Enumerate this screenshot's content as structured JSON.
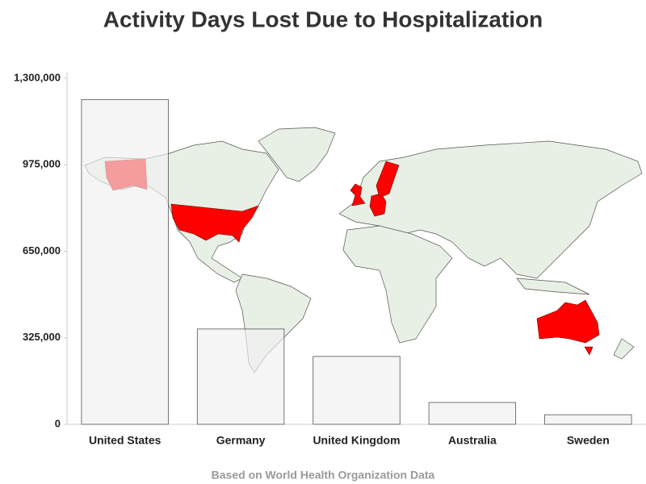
{
  "chart_data": {
    "type": "bar",
    "title": "Activity Days Lost Due to Hospitalization",
    "footnote": "Based on World Health Organization Data",
    "categories": [
      "United States",
      "Germany",
      "United Kingdom",
      "Australia",
      "Sweden"
    ],
    "values": [
      1220000,
      358000,
      255000,
      82000,
      36000
    ],
    "color": "#efefef",
    "ylim": [
      0,
      1300000
    ],
    "yticks": [
      0,
      {
        "value": 325000,
        "label": "325,000"
      },
      {
        "value": 650000,
        "label": "650,000"
      },
      {
        "value": 975000,
        "label": "975,000"
      },
      {
        "value": 1300000,
        "label": "1,300,000"
      }
    ],
    "grid": false
  }
}
